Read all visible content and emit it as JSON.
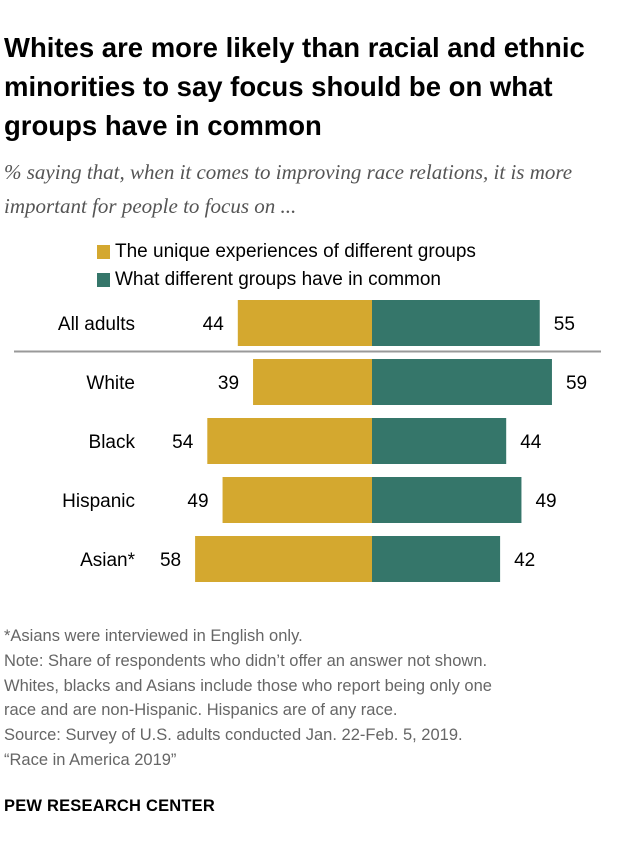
{
  "title": "Whites are more likely than racial and ethnic minorities to say focus should be on what groups have in common",
  "subtitle": "% saying that, when it comes to improving race relations, it is more important for people to focus on ...",
  "colors": {
    "unique": "#D4A82F",
    "common": "#35766A",
    "divider": "#999999"
  },
  "chart_data": {
    "type": "bar",
    "orientation": "diverging-horizontal",
    "categories": [
      "All adults",
      "White",
      "Black",
      "Hispanic",
      "Asian*"
    ],
    "series": [
      {
        "name": "The unique experiences of different groups",
        "values": [
          44,
          39,
          54,
          49,
          58
        ]
      },
      {
        "name": "What different groups have in common",
        "values": [
          55,
          59,
          44,
          49,
          42
        ]
      }
    ],
    "xlabel": "",
    "ylabel": ""
  },
  "footnotes": [
    "*Asians were interviewed in English only.",
    "Note: Share of respondents who didn’t offer an answer not shown.",
    "Whites, blacks and Asians include those who report being only one",
    "race and are non-Hispanic. Hispanics are of any race.",
    "Source: Survey of U.S. adults conducted Jan. 22-Feb. 5, 2019.",
    "“Race in America 2019”"
  ],
  "brand": "PEW RESEARCH CENTER"
}
